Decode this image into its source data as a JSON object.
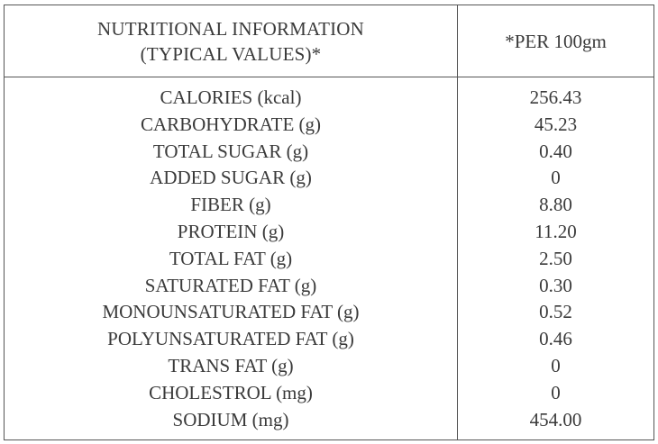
{
  "header": {
    "nutrient_col_line1": "NUTRITIONAL INFORMATION",
    "nutrient_col_line2": "(TYPICAL VALUES)*",
    "value_col": "*PER 100gm"
  },
  "rows": [
    {
      "label": "CALORIES (kcal)",
      "value": "256.43"
    },
    {
      "label": "CARBOHYDRATE (g)",
      "value": "45.23"
    },
    {
      "label": "TOTAL SUGAR (g)",
      "value": "0.40"
    },
    {
      "label": "ADDED SUGAR (g)",
      "value": "0"
    },
    {
      "label": "FIBER (g)",
      "value": "8.80"
    },
    {
      "label": "PROTEIN (g)",
      "value": "11.20"
    },
    {
      "label": "TOTAL FAT (g)",
      "value": "2.50"
    },
    {
      "label": "SATURATED FAT (g)",
      "value": "0.30"
    },
    {
      "label": "MONOUNSATURATED FAT (g)",
      "value": "0.52"
    },
    {
      "label": "POLYUNSATURATED FAT (g)",
      "value": "0.46"
    },
    {
      "label": "TRANS FAT (g)",
      "value": "0"
    },
    {
      "label": "CHOLESTROL (mg)",
      "value": "0"
    },
    {
      "label": "SODIUM (mg)",
      "value": "454.00"
    }
  ]
}
